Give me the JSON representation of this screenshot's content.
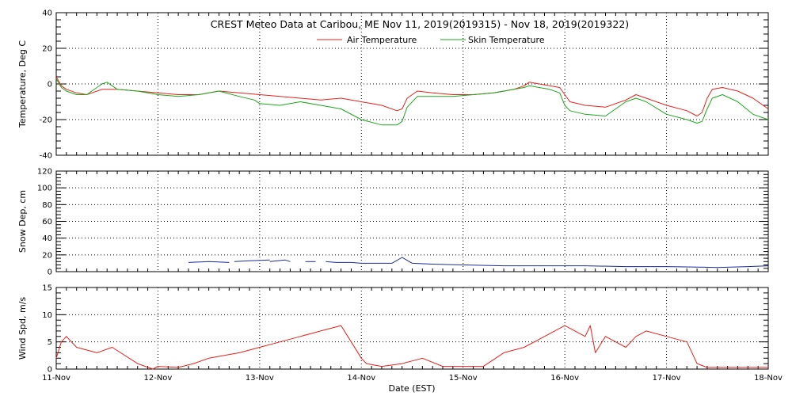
{
  "title": "CREST Meteo Data at Caribou, ME   Nov 11, 2019(2019315) - Nov 18, 2019(2019322)",
  "xlabel": "Date (EST)",
  "colors": {
    "air": "#e8201a",
    "skin": "#1aa81a",
    "snow": "#1a2a9a",
    "wind": "#e8201a",
    "frame": "#000000"
  },
  "chart_data": [
    {
      "type": "line",
      "ylabel": "Temperature, Deg C",
      "xlim": [
        0,
        7
      ],
      "ylim": [
        -40,
        40
      ],
      "yticks": [
        -40,
        -20,
        0,
        20,
        40
      ],
      "x_tick_labels": [
        "11-Nov",
        "12-Nov",
        "13-Nov",
        "14-Nov",
        "15-Nov",
        "16-Nov",
        "17-Nov",
        "18-Nov"
      ],
      "grid": true,
      "legend_position": "top-center",
      "series": [
        {
          "name": "Air Temperature",
          "color": "#e8201a",
          "x": [
            0,
            0.05,
            0.1,
            0.2,
            0.3,
            0.35,
            0.45,
            0.6,
            0.8,
            1.0,
            1.2,
            1.4,
            1.5,
            1.6,
            1.8,
            2.0,
            2.2,
            2.4,
            2.6,
            2.8,
            3.0,
            3.2,
            3.35,
            3.4,
            3.45,
            3.55,
            3.7,
            3.9,
            4.1,
            4.3,
            4.5,
            4.6,
            4.65,
            4.75,
            4.85,
            4.95,
            5.0,
            5.05,
            5.2,
            5.4,
            5.6,
            5.7,
            5.8,
            6.0,
            6.2,
            6.3,
            6.35,
            6.4,
            6.45,
            6.55,
            6.7,
            6.85,
            7.0
          ],
          "y": [
            4,
            -1,
            -3,
            -5,
            -6,
            -5,
            -3,
            -3,
            -4,
            -5,
            -6,
            -6,
            -5,
            -4,
            -5,
            -6,
            -7,
            -8,
            -9,
            -8,
            -10,
            -12,
            -15,
            -14,
            -8,
            -4,
            -5,
            -6,
            -6,
            -5,
            -3,
            -1,
            1,
            0,
            -1,
            -2,
            -6,
            -10,
            -12,
            -13,
            -9,
            -6,
            -8,
            -12,
            -15,
            -18,
            -16,
            -8,
            -3,
            -2,
            -4,
            -8,
            -14
          ]
        },
        {
          "name": "Skin Temperature",
          "color": "#1aa81a",
          "x": [
            0,
            0.05,
            0.1,
            0.2,
            0.3,
            0.35,
            0.45,
            0.5,
            0.6,
            0.8,
            1.0,
            1.2,
            1.4,
            1.5,
            1.6,
            1.8,
            1.95,
            2.0,
            2.2,
            2.4,
            2.6,
            2.8,
            3.0,
            3.2,
            3.35,
            3.4,
            3.45,
            3.55,
            3.7,
            3.9,
            4.1,
            4.3,
            4.5,
            4.6,
            4.65,
            4.75,
            4.85,
            4.95,
            5.0,
            5.05,
            5.2,
            5.4,
            5.6,
            5.7,
            5.8,
            6.0,
            6.2,
            6.3,
            6.35,
            6.4,
            6.45,
            6.55,
            6.7,
            6.85,
            7.0
          ],
          "y": [
            3,
            -2,
            -4,
            -6,
            -6,
            -4,
            0,
            1,
            -3,
            -4,
            -6,
            -7,
            -6,
            -5,
            -4,
            -7,
            -9,
            -11,
            -12,
            -10,
            -12,
            -14,
            -20,
            -23,
            -23,
            -21,
            -13,
            -7,
            -7,
            -7,
            -6,
            -5,
            -3,
            -2,
            -1,
            -2,
            -3,
            -5,
            -12,
            -15,
            -17,
            -18,
            -10,
            -8,
            -10,
            -17,
            -20,
            -22,
            -21,
            -14,
            -8,
            -6,
            -10,
            -17,
            -20
          ]
        }
      ]
    },
    {
      "type": "line",
      "ylabel": "Snow Dep, cm",
      "xlim": [
        0,
        7
      ],
      "ylim": [
        0,
        120
      ],
      "yticks": [
        0,
        20,
        40,
        60,
        80,
        100,
        120
      ],
      "grid": true,
      "series": [
        {
          "color": "#1a2a9a",
          "segments": [
            {
              "x": [
                1.3,
                1.5,
                1.7
              ],
              "y": [
                11,
                12,
                11
              ]
            },
            {
              "x": [
                1.75,
                1.9,
                2.1
              ],
              "y": [
                12,
                13,
                14
              ]
            },
            {
              "x": [
                2.1,
                2.25,
                2.3
              ],
              "y": [
                12,
                14,
                12
              ]
            },
            {
              "x": [
                2.45,
                2.55
              ],
              "y": [
                12,
                12
              ]
            },
            {
              "x": [
                2.65,
                2.75,
                2.9,
                3.0
              ],
              "y": [
                12,
                11,
                11,
                10
              ]
            },
            {
              "x": [
                3.0,
                3.3,
                3.4,
                3.5,
                3.7,
                4.0,
                4.4,
                4.7
              ],
              "y": [
                10,
                10,
                17,
                10,
                9,
                8,
                7,
                7
              ]
            },
            {
              "x": [
                4.7,
                5.2,
                5.6,
                6.0,
                6.5,
                6.8,
                7.0
              ],
              "y": [
                7,
                7,
                6,
                6,
                5,
                6,
                7
              ]
            }
          ]
        }
      ]
    },
    {
      "type": "line",
      "ylabel": "Wind Spd, m/s",
      "xlim": [
        0,
        7
      ],
      "ylim": [
        0,
        15
      ],
      "yticks": [
        0,
        5,
        10,
        15
      ],
      "grid": true,
      "series": [
        {
          "color": "#e8201a",
          "x": [
            0,
            0.05,
            0.1,
            0.2,
            0.4,
            0.55,
            0.8,
            0.95,
            1.0,
            1.2,
            1.35,
            1.5,
            1.8,
            2.0,
            2.2,
            2.4,
            2.6,
            2.8,
            2.9,
            3.0,
            3.05,
            3.2,
            3.4,
            3.6,
            3.8,
            4.0,
            4.2,
            4.4,
            4.6,
            4.8,
            5.0,
            5.2,
            5.25,
            5.3,
            5.4,
            5.5,
            5.6,
            5.7,
            5.8,
            6.0,
            6.2,
            6.3,
            6.4,
            6.6,
            6.8,
            7.0
          ],
          "y": [
            2,
            5,
            6,
            4,
            3,
            4,
            1,
            0,
            0.5,
            0.3,
            1,
            2,
            3,
            4,
            5,
            6,
            7,
            8,
            5,
            2,
            1,
            0.5,
            1,
            2,
            0.5,
            0.5,
            0.5,
            3,
            4,
            6,
            8,
            6,
            8,
            3,
            6,
            5,
            4,
            6,
            7,
            6,
            5,
            1,
            0.3,
            0.3,
            0.3,
            0.3
          ]
        }
      ]
    }
  ]
}
